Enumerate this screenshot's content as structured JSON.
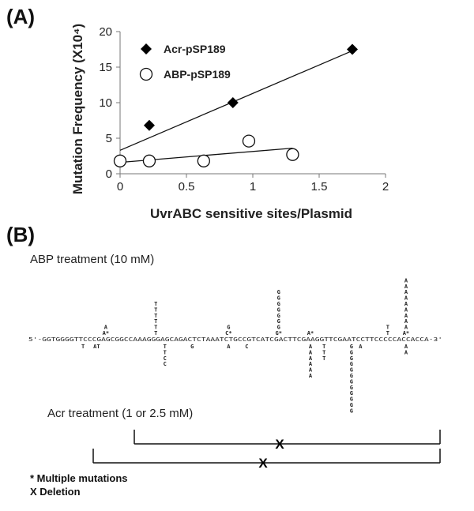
{
  "panel_a_label": "(A)",
  "panel_b_label": "(B)",
  "chart_data": {
    "type": "scatter",
    "xlabel": "UvrABC sensitive sites/Plasmid",
    "ylabel": "Mutation Frequency (X10⁴)",
    "xlim": [
      0,
      2
    ],
    "ylim": [
      0,
      20
    ],
    "xticks": [
      "0",
      "0.5",
      "1",
      "1.5",
      "2"
    ],
    "yticks": [
      "0",
      "5",
      "10",
      "15",
      "20"
    ],
    "legend_position": "top-left",
    "series": [
      {
        "name": "Acr-pSP189",
        "marker": "filled-diamond",
        "x": [
          0,
          0.22,
          0.85,
          1.75
        ],
        "y": [
          1.8,
          6.8,
          10.0,
          17.5
        ],
        "trendline": {
          "x": [
            0,
            1.75
          ],
          "y": [
            3.3,
            17.3
          ]
        }
      },
      {
        "name": "ABP-pSP189",
        "marker": "open-circle",
        "x": [
          0,
          0.22,
          0.63,
          0.97,
          1.3
        ],
        "y": [
          1.8,
          1.8,
          1.8,
          4.6,
          2.7
        ],
        "trendline": {
          "x": [
            0,
            1.3
          ],
          "y": [
            1.6,
            3.6
          ]
        }
      }
    ]
  },
  "panel_b": {
    "abp_caption": "ABP treatment (10 mM)",
    "acr_caption": "Acr treatment (1 or 2.5 mM)",
    "sequence": "5'-GGTGGGGTTCCCGAGCGGCCAAAGGGAGCAGACTCTAAATCTGCCGTCATCGACTTCGAAGGTTCGAATCCTTCCCCCACCACCA-3'",
    "above": [
      {
        "pos": 17,
        "lines": [
          "A",
          "A*"
        ]
      },
      {
        "pos": 28,
        "lines": [
          "T",
          "T",
          "T",
          "T",
          "T",
          "T"
        ]
      },
      {
        "pos": 44,
        "lines": [
          "G",
          "C*"
        ]
      },
      {
        "pos": 55,
        "lines": [
          "G",
          "G",
          "G",
          "G",
          "G",
          "G",
          "G",
          "G*"
        ]
      },
      {
        "pos": 62,
        "lines": [
          "A*"
        ]
      },
      {
        "pos": 79,
        "lines": [
          "T",
          "T"
        ]
      },
      {
        "pos": 83,
        "lines": [
          "A",
          "A",
          "A",
          "A",
          "A",
          "A",
          "A",
          "A",
          "A",
          "A*"
        ]
      }
    ],
    "below": [
      {
        "pos": 12,
        "lines": [
          "T"
        ]
      },
      {
        "pos": 15,
        "lines": [
          "AT"
        ]
      },
      {
        "pos": 30,
        "lines": [
          "T",
          "T",
          "C",
          "C"
        ]
      },
      {
        "pos": 36,
        "lines": [
          "G"
        ]
      },
      {
        "pos": 44,
        "lines": [
          "A"
        ]
      },
      {
        "pos": 48,
        "lines": [
          "C"
        ]
      },
      {
        "pos": 62,
        "lines": [
          "A",
          "A",
          "A",
          "A",
          "A",
          "A"
        ]
      },
      {
        "pos": 65,
        "lines": [
          "T",
          "T",
          "T"
        ]
      },
      {
        "pos": 71,
        "lines": [
          "G",
          "G",
          "G",
          "G",
          "G",
          "G",
          "G",
          "G",
          "G",
          "G",
          "G",
          "G"
        ]
      },
      {
        "pos": 73,
        "lines": [
          "A"
        ]
      },
      {
        "pos": 83,
        "lines": [
          "A",
          "A"
        ]
      }
    ],
    "deletion_marker": "X",
    "notes": [
      "* Multiple mutations",
      "X Deletion"
    ]
  }
}
